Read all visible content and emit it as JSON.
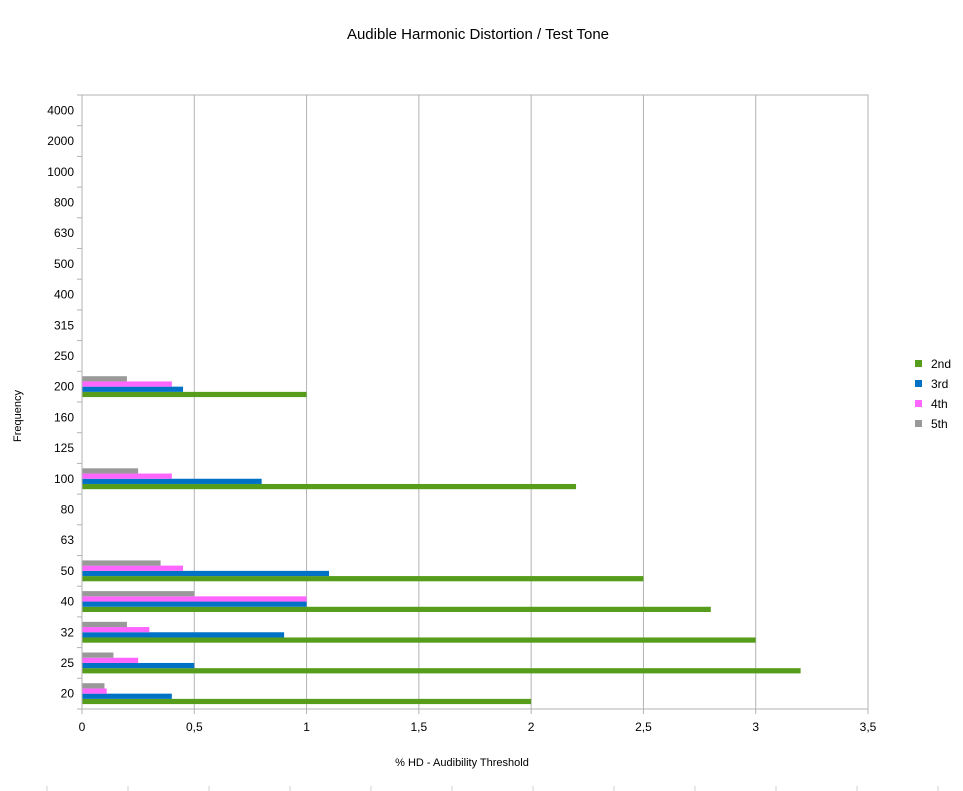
{
  "chart_data": {
    "type": "bar",
    "orientation": "horizontal",
    "title": "Audible Harmonic Distortion / Test Tone",
    "xlabel": "% HD - Audibility Threshold",
    "ylabel": "Frequency",
    "categories": [
      "20",
      "25",
      "32",
      "40",
      "50",
      "63",
      "80",
      "100",
      "125",
      "160",
      "200",
      "250",
      "315",
      "400",
      "500",
      "630",
      "800",
      "1000",
      "2000",
      "4000"
    ],
    "xlim": [
      0,
      3.5
    ],
    "x_ticks": [
      "0",
      "0,5",
      "1",
      "1,5",
      "2",
      "2,5",
      "3",
      "3,5"
    ],
    "x_tick_values": [
      0,
      0.5,
      1,
      1.5,
      2,
      2.5,
      3,
      3.5
    ],
    "grid": "vertical",
    "legend_position": "right",
    "series": [
      {
        "name": "2nd",
        "color": "#579d1c",
        "values": [
          2.0,
          3.2,
          3.0,
          2.8,
          2.5,
          null,
          null,
          2.2,
          null,
          null,
          1.0,
          null,
          null,
          null,
          null,
          null,
          null,
          null,
          null,
          null
        ]
      },
      {
        "name": "3rd",
        "color": "#0072c6",
        "values": [
          0.4,
          0.5,
          0.9,
          1.0,
          1.1,
          null,
          null,
          0.8,
          null,
          null,
          0.45,
          null,
          null,
          null,
          null,
          null,
          null,
          null,
          null,
          null
        ]
      },
      {
        "name": "4th",
        "color": "#ff66ff",
        "values": [
          0.11,
          0.25,
          0.3,
          1.0,
          0.45,
          null,
          null,
          0.4,
          null,
          null,
          0.4,
          null,
          null,
          null,
          null,
          null,
          null,
          null,
          null,
          null
        ]
      },
      {
        "name": "5th",
        "color": "#999999",
        "values": [
          0.1,
          0.14,
          0.2,
          0.5,
          0.35,
          null,
          null,
          0.25,
          null,
          null,
          0.2,
          null,
          null,
          null,
          null,
          null,
          null,
          null,
          null,
          null
        ]
      }
    ]
  }
}
